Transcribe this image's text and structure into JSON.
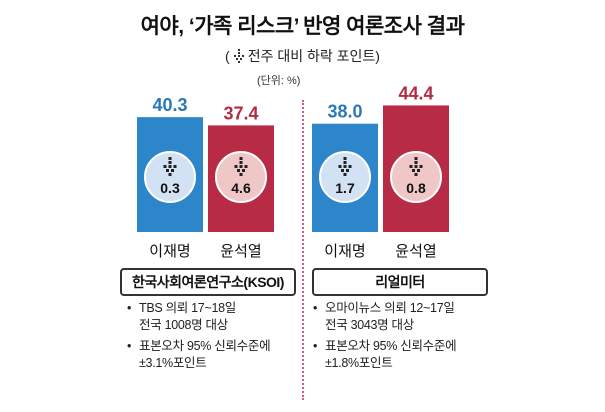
{
  "title": "여야, ‘가족 리스크’ 반영 여론조사 결과",
  "legend": {
    "open": "(",
    "text": "전주 대비 하락 포인트)"
  },
  "unit": "(단위: %)",
  "colors": {
    "lee_bar": "#2d86c9",
    "yoon_bar": "#b72b45",
    "lee_label": "#2a78b8",
    "yoon_label": "#b12d44",
    "lee_circle": "#d3e2f2",
    "yoon_circle": "#f0c7c7",
    "divider": "#d9578f"
  },
  "chart_data": [
    {
      "type": "bar",
      "source": "한국사회여론연구소(KSOI)",
      "categories": [
        "이재명",
        "윤석열"
      ],
      "values": [
        40.3,
        37.4
      ],
      "change_labels": [
        "0.3",
        "4.6"
      ],
      "change_values": [
        -0.3,
        -4.6
      ],
      "notes": [
        [
          "TBS 의뢰 17~18일",
          "전국 1008명 대상"
        ],
        [
          "표본오차 95% 신뢰수준에",
          "±3.1%포인트"
        ]
      ]
    },
    {
      "type": "bar",
      "source": "리얼미터",
      "categories": [
        "이재명",
        "윤석열"
      ],
      "values": [
        38.0,
        44.4
      ],
      "change_labels": [
        "1.7",
        "0.8"
      ],
      "change_values": [
        -1.7,
        -0.8
      ],
      "notes": [
        [
          "오마이뉴스 의뢰 12~17일",
          "전국 3043명 대상"
        ],
        [
          "표본오차 95% 신뢰수준에",
          "±1.8%포인트"
        ]
      ]
    }
  ]
}
